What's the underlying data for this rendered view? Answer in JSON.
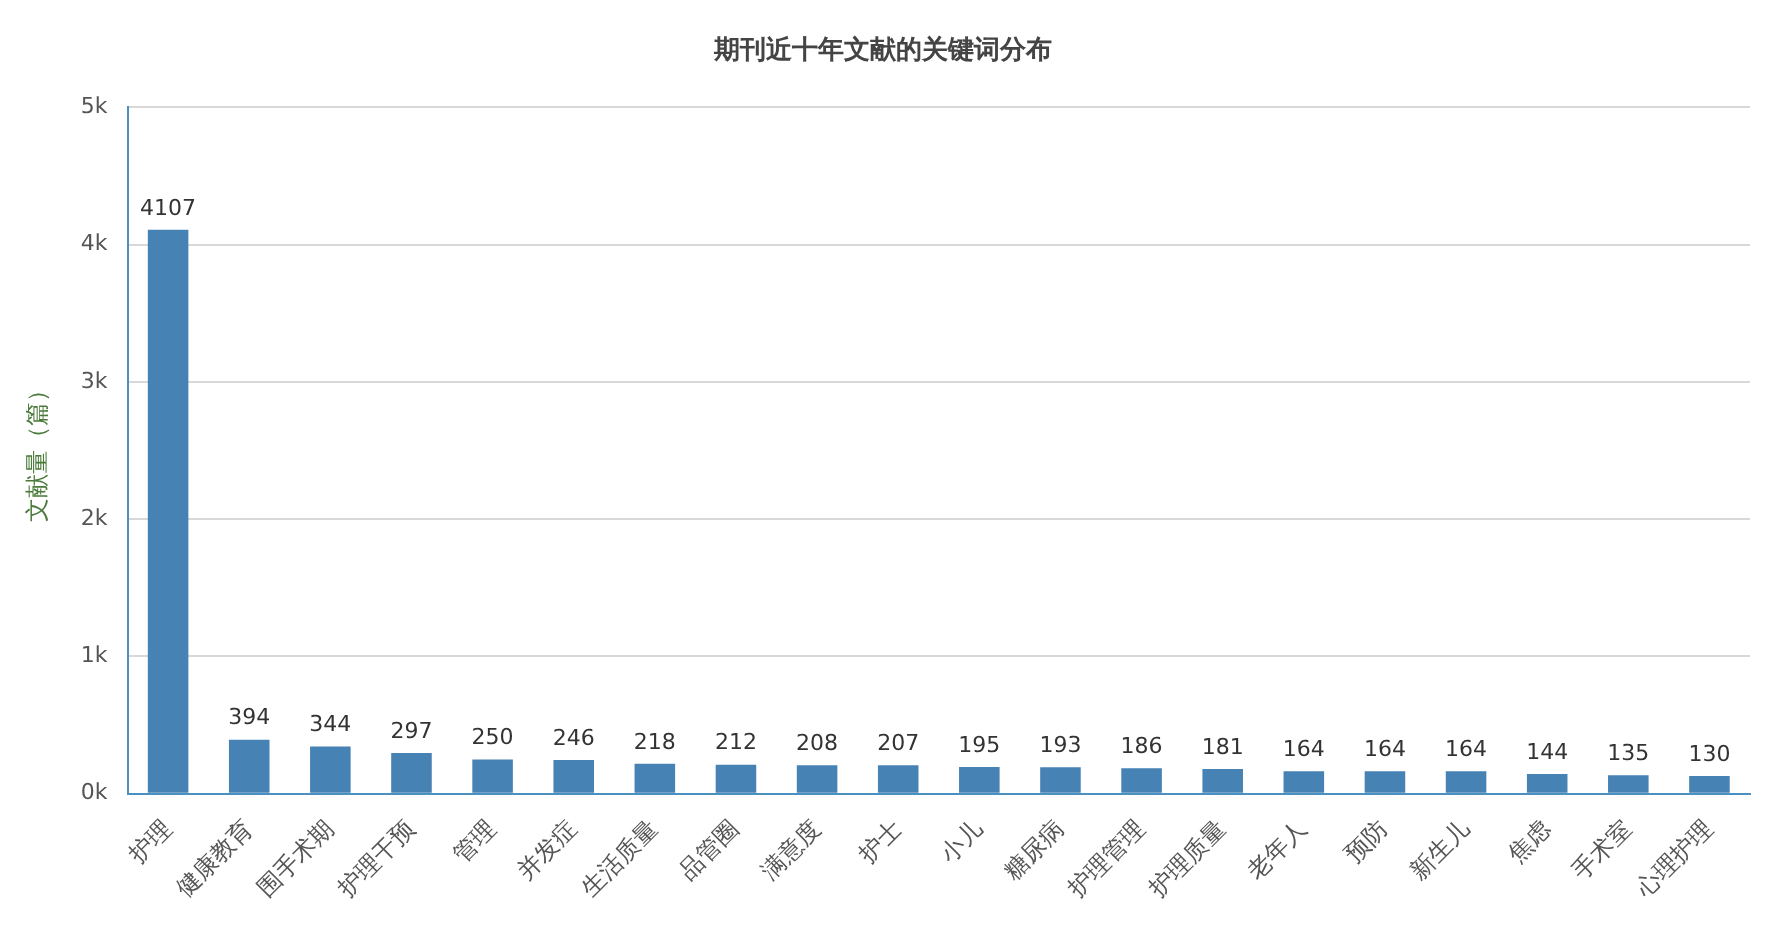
{
  "chart_data": {
    "type": "bar",
    "title": "期刊近十年文献的关键词分布",
    "ylabel": "文献量（篇）",
    "categories": [
      "护理",
      "健康教育",
      "围手术期",
      "护理干预",
      "管理",
      "并发症",
      "生活质量",
      "品管圈",
      "满意度",
      "护士",
      "小儿",
      "糖尿病",
      "护理管理",
      "护理质量",
      "老年人",
      "预防",
      "新生儿",
      "焦虑",
      "手术室",
      "心理护理"
    ],
    "values": [
      4107,
      394,
      344,
      297,
      250,
      246,
      218,
      212,
      208,
      207,
      195,
      193,
      186,
      181,
      164,
      164,
      164,
      144,
      135,
      130
    ],
    "color": "#4682b4",
    "ylim": [
      0,
      5000
    ],
    "yticks": [
      {
        "value": 0,
        "label": "0k"
      },
      {
        "value": 1000,
        "label": "1k"
      },
      {
        "value": 2000,
        "label": "2k"
      },
      {
        "value": 3000,
        "label": "3k"
      },
      {
        "value": 4000,
        "label": "4k"
      },
      {
        "value": 5000,
        "label": "5k"
      }
    ],
    "grid": "y",
    "data_labels": true,
    "legend": false
  }
}
